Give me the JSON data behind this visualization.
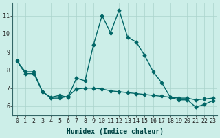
{
  "xlabel": "Humidex (Indice chaleur)",
  "background_color": "#cceee8",
  "grid_color": "#aad4cc",
  "line_color": "#006666",
  "xlim_min": -0.5,
  "xlim_max": 23.5,
  "ylim_min": 5.5,
  "ylim_max": 11.7,
  "yticks": [
    6,
    7,
    8,
    9,
    10,
    11
  ],
  "xticks": [
    0,
    1,
    2,
    3,
    4,
    5,
    6,
    7,
    8,
    9,
    10,
    11,
    12,
    13,
    14,
    15,
    16,
    17,
    18,
    19,
    20,
    21,
    22,
    23
  ],
  "series1_x": [
    0,
    1,
    2,
    3,
    4,
    5,
    6,
    7,
    8,
    9,
    10,
    11,
    12,
    13,
    14,
    15,
    16,
    17,
    18,
    19,
    20,
    21,
    22,
    23
  ],
  "series1_y": [
    8.5,
    7.9,
    7.9,
    6.8,
    6.5,
    6.6,
    6.5,
    7.55,
    7.4,
    9.4,
    11.0,
    10.05,
    11.3,
    9.8,
    9.55,
    8.8,
    7.9,
    7.3,
    6.5,
    6.35,
    6.35,
    5.95,
    6.1,
    6.3
  ],
  "series2_x": [
    0,
    1,
    2,
    3,
    4,
    5,
    6,
    7,
    8,
    9,
    10,
    11,
    12,
    13,
    14,
    15,
    16,
    17,
    18,
    19,
    20,
    21,
    22,
    23
  ],
  "series2_y": [
    8.5,
    7.8,
    7.8,
    6.8,
    6.45,
    6.45,
    6.55,
    6.95,
    7.0,
    7.0,
    6.95,
    6.85,
    6.8,
    6.75,
    6.7,
    6.65,
    6.6,
    6.55,
    6.5,
    6.45,
    6.45,
    6.35,
    6.4,
    6.45
  ],
  "marker_size": 2.5,
  "line_width": 1.0,
  "font_size_axis": 7,
  "font_size_tick": 6
}
